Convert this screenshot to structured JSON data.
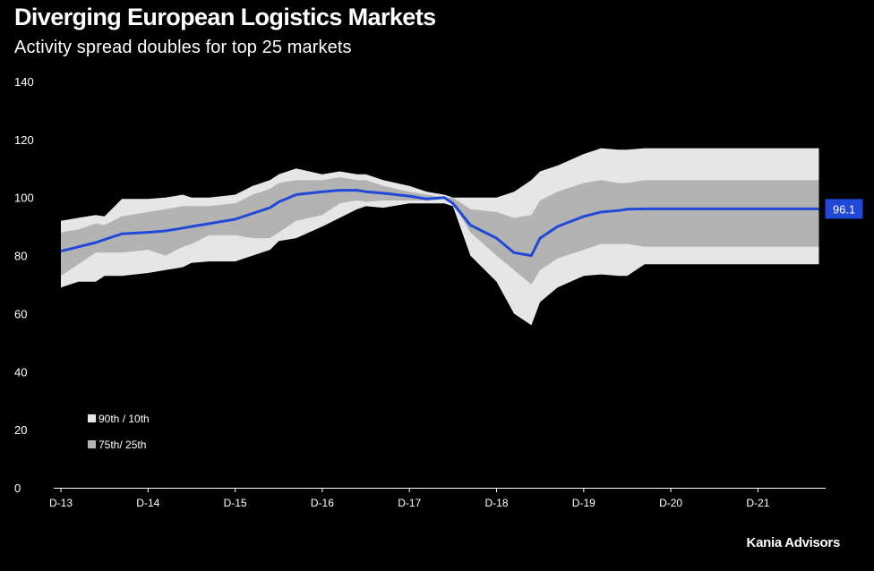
{
  "header": {
    "title": "Diverging European Logistics Markets",
    "subtitle": "Activity spread doubles for top 25 markets"
  },
  "source": "Kania Advisors",
  "colors": {
    "background": "#000000",
    "band_outer": "#e6e6e6",
    "band_inner": "#b3b3b3",
    "median_line": "#1f49d6",
    "label_bg": "#1f49d6"
  },
  "chart_data": {
    "type": "area",
    "title": "Diverging European Logistics Markets",
    "subtitle": "Activity spread doubles for top 25 markets",
    "xlabel": "",
    "ylabel": "",
    "ylim": [
      0,
      140
    ],
    "yticks": [
      "0",
      "20",
      "40",
      "60",
      "80",
      "100",
      "120",
      "140"
    ],
    "xtick_labels": [
      "D-13",
      "D-14",
      "D-15",
      "D-16",
      "D-17",
      "D-18",
      "D-19",
      "D-20",
      "D-21"
    ],
    "x": [
      0,
      0.2,
      0.4,
      0.5,
      0.7,
      1.0,
      1.2,
      1.4,
      1.5,
      1.7,
      2.0,
      2.2,
      2.4,
      2.5,
      2.7,
      3.0,
      3.2,
      3.4,
      3.5,
      3.7,
      4.0,
      4.2,
      4.4,
      4.5,
      4.7,
      5.0,
      5.2,
      5.4,
      5.5,
      5.7,
      6.0,
      6.2,
      6.4,
      6.5,
      6.7,
      7.0,
      7.2,
      7.4,
      7.5,
      7.7,
      8.0,
      8.2,
      8.4,
      8.5,
      8.7
    ],
    "legend": [
      "90th / 10th",
      "75th/ 25th"
    ],
    "legend_position": "bottom-left",
    "end_label": "96.1",
    "series": [
      {
        "name": "90th percentile",
        "values": [
          92,
          93,
          94,
          93.5,
          99.5,
          99.5,
          100,
          101,
          100,
          100,
          101,
          104,
          106,
          108,
          110,
          108,
          109,
          108,
          108,
          106,
          104,
          102,
          101,
          100,
          100,
          100,
          102,
          106,
          109,
          111,
          115,
          117,
          116.5,
          116.5,
          117,
          117,
          117,
          117,
          117,
          117,
          117,
          117,
          117,
          117,
          117
        ]
      },
      {
        "name": "75th percentile",
        "values": [
          88,
          89,
          91,
          90.5,
          93.5,
          95,
          96,
          97,
          97,
          97,
          98,
          101,
          103,
          105,
          106,
          106,
          107,
          106,
          106,
          104,
          102,
          101,
          100,
          100,
          96,
          95,
          93,
          94,
          99,
          102,
          105,
          106,
          105,
          105,
          106,
          106,
          106,
          106,
          106,
          106,
          106,
          106,
          106,
          106,
          106
        ]
      },
      {
        "name": "Median",
        "values": [
          81.5,
          83,
          84.5,
          85.5,
          87.5,
          88,
          88.5,
          89.5,
          90,
          91,
          92.5,
          94.5,
          96.5,
          98.5,
          101,
          102,
          102.5,
          102.5,
          102,
          101.5,
          100.5,
          99.5,
          100,
          98,
          90.5,
          86,
          81,
          80,
          86,
          90,
          93.5,
          95,
          95.5,
          96,
          96.1,
          96.1,
          96.1,
          96.1,
          96.1,
          96.1,
          96.1,
          96.1,
          96.1,
          96.1,
          96.1
        ]
      },
      {
        "name": "25th percentile",
        "values": [
          73,
          77,
          81,
          81,
          81,
          82,
          80,
          83,
          84,
          87,
          87,
          86,
          86,
          88,
          92,
          94,
          98,
          99,
          98.5,
          99,
          99,
          99,
          99.5,
          98,
          88,
          80,
          75,
          70,
          75,
          79,
          82,
          84,
          84,
          84,
          83,
          83,
          83,
          83,
          83,
          83,
          83,
          83,
          83,
          83,
          83
        ]
      },
      {
        "name": "10th percentile",
        "values": [
          69,
          71,
          71,
          73,
          73,
          74,
          75,
          76,
          77.5,
          78,
          78,
          80,
          82,
          85,
          86,
          90,
          93,
          96,
          97,
          96.5,
          98,
          98,
          98,
          97,
          80,
          71,
          60,
          56,
          64,
          69,
          73,
          73.5,
          73,
          73,
          77,
          77,
          77,
          77,
          77,
          77,
          77,
          77,
          77,
          77,
          77
        ]
      }
    ]
  }
}
